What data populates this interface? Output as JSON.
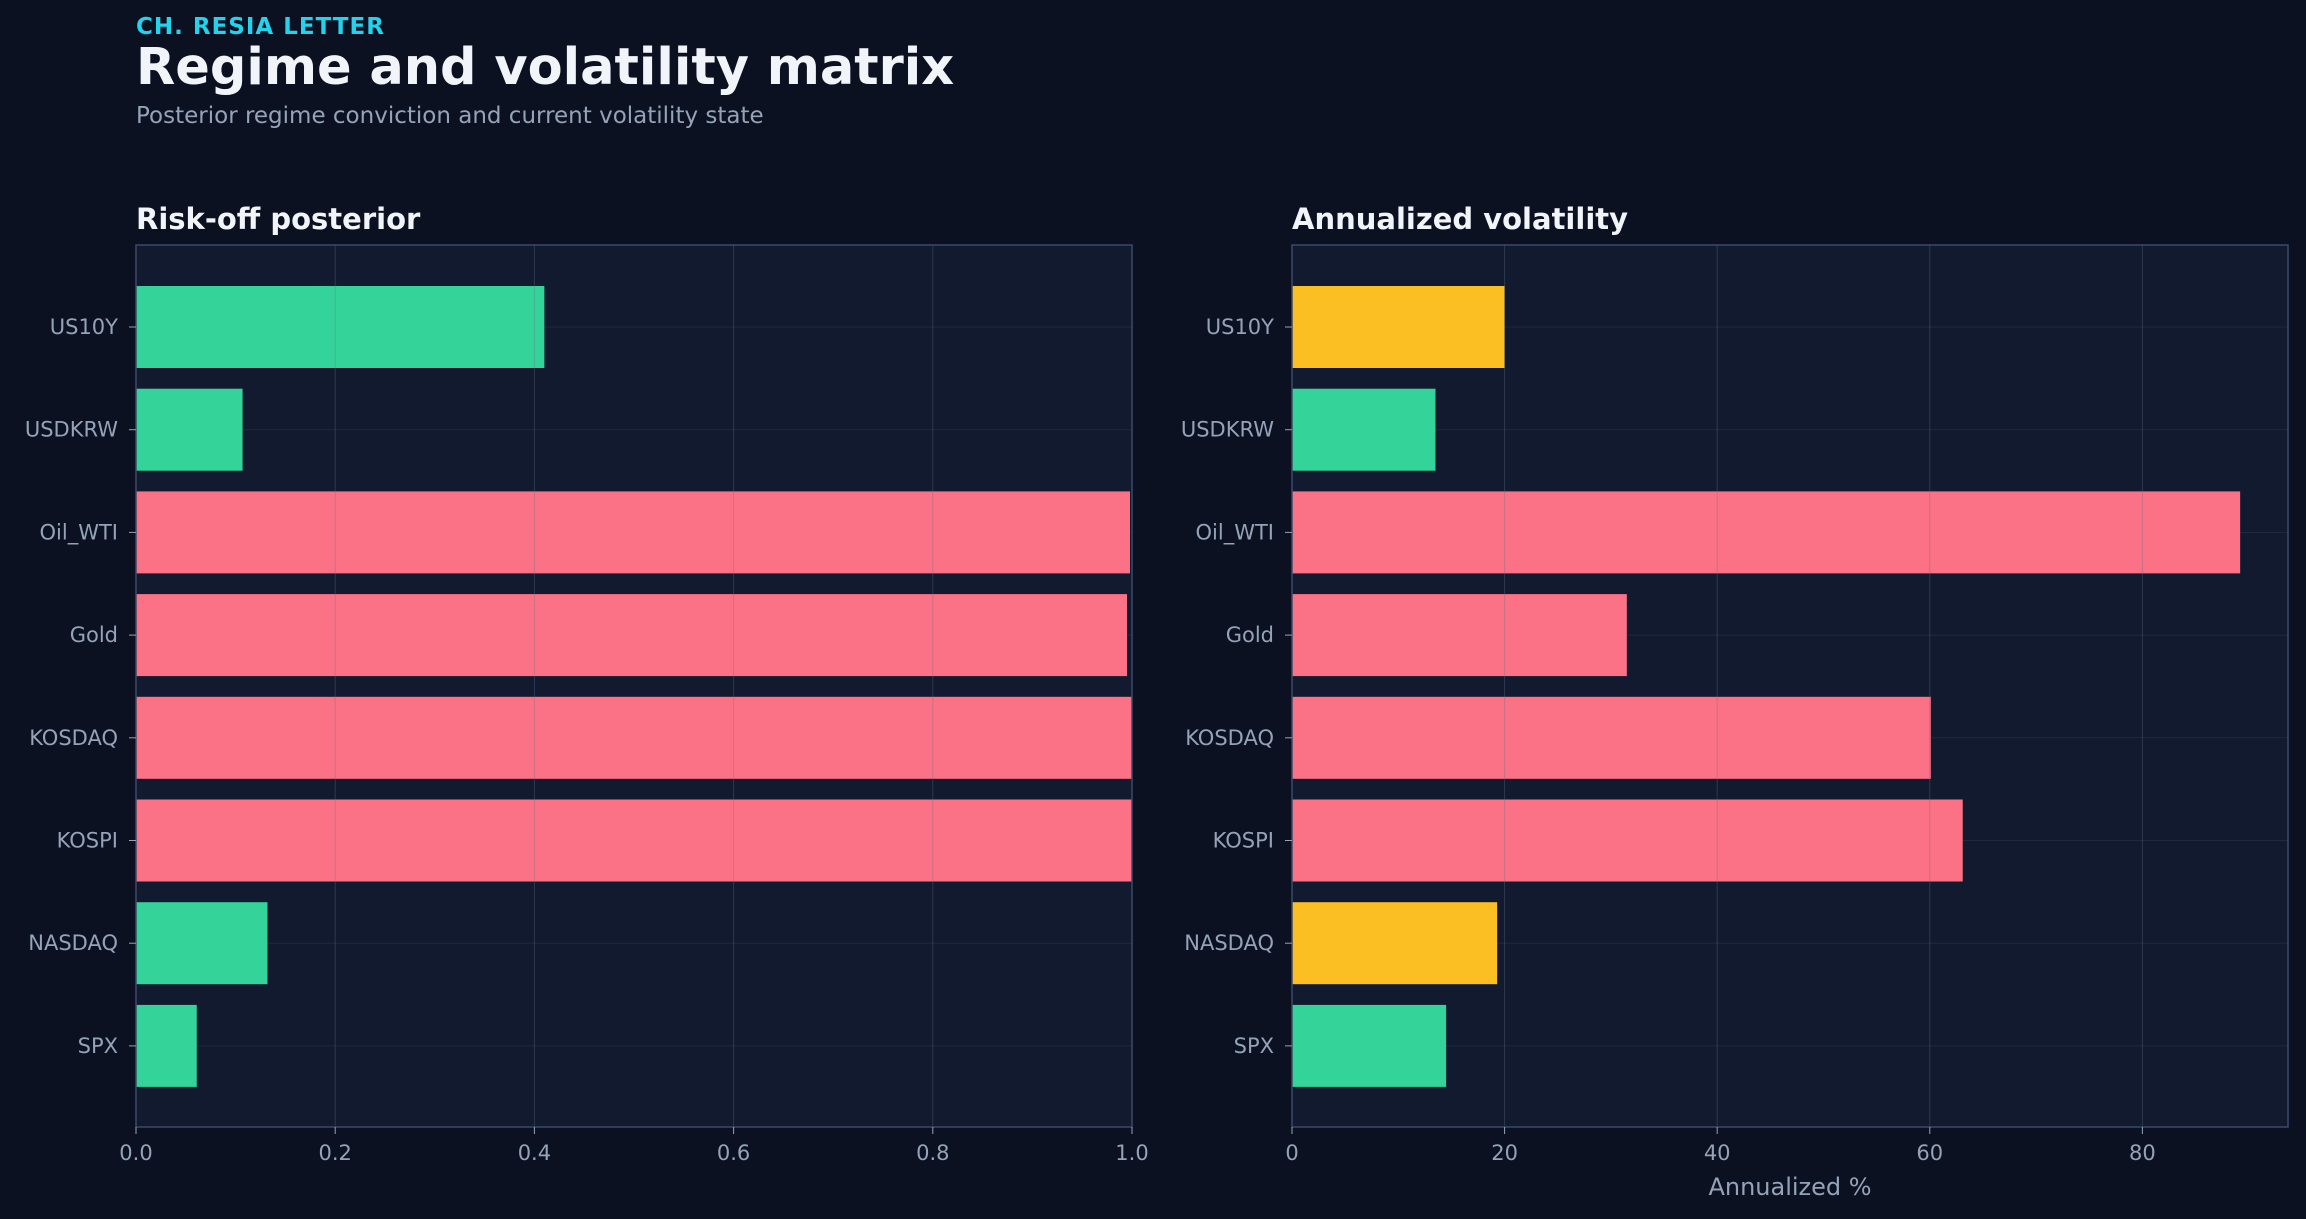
{
  "header": {
    "kicker": "CH. RESIA LETTER",
    "title": "Regime and volatility matrix",
    "subtitle": "Posterior regime conviction and current volatility state"
  },
  "colors": {
    "background": "#0b1121",
    "panel": "#111a2e",
    "low": "#34d399",
    "medium": "#fbbf24",
    "high": "#fb7185",
    "accent": "#22d3ee"
  },
  "chart_data": [
    {
      "type": "bar",
      "orientation": "horizontal",
      "title": "Risk-off posterior",
      "xlabel": "",
      "ylabel": "",
      "categories": [
        "US10Y",
        "USDKRW",
        "Oil_WTI",
        "Gold",
        "KOSDAQ",
        "KOSPI",
        "NASDAQ",
        "SPX"
      ],
      "values": [
        0.41,
        0.107,
        0.998,
        0.995,
        1.0,
        1.0,
        0.132,
        0.061
      ],
      "bar_colors": [
        "#34d399",
        "#34d399",
        "#fb7185",
        "#fb7185",
        "#fb7185",
        "#fb7185",
        "#34d399",
        "#34d399"
      ],
      "xlim": [
        0,
        1.0
      ],
      "xticks": [
        0.0,
        0.2,
        0.4,
        0.6,
        0.8,
        1.0
      ],
      "xtick_labels": [
        "0.0",
        "0.2",
        "0.4",
        "0.6",
        "0.8",
        "1.0"
      ],
      "grid": true
    },
    {
      "type": "bar",
      "orientation": "horizontal",
      "title": "Annualized volatility",
      "xlabel": "Annualized %",
      "ylabel": "",
      "categories": [
        "US10Y",
        "USDKRW",
        "Oil_WTI",
        "Gold",
        "KOSDAQ",
        "KOSPI",
        "NASDAQ",
        "SPX"
      ],
      "values": [
        20.0,
        13.5,
        89.2,
        31.5,
        60.1,
        63.1,
        19.3,
        14.5
      ],
      "bar_colors": [
        "#fbbf24",
        "#34d399",
        "#fb7185",
        "#fb7185",
        "#fb7185",
        "#fb7185",
        "#fbbf24",
        "#34d399"
      ],
      "xlim": [
        0,
        93.7
      ],
      "xticks": [
        0,
        20,
        40,
        60,
        80
      ],
      "xtick_labels": [
        "0",
        "20",
        "40",
        "60",
        "80"
      ],
      "grid": true
    }
  ]
}
